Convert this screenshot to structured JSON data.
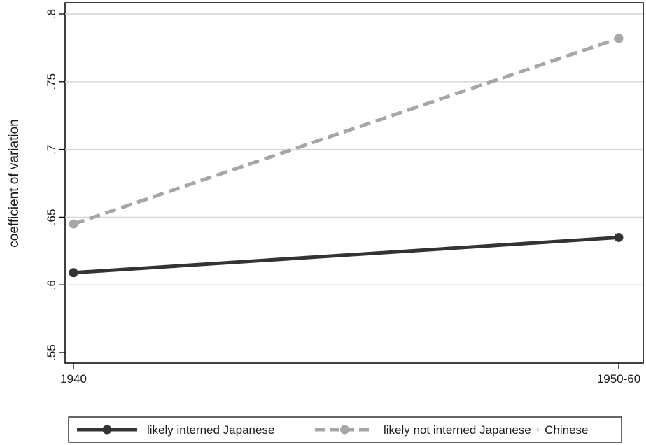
{
  "chart_data": {
    "type": "line",
    "title": "",
    "xlabel": "",
    "ylabel": "coefficient of variation",
    "categories": [
      "1940",
      "1950-60"
    ],
    "ylim": [
      0.55,
      0.8
    ],
    "yticks": [
      0.55,
      0.6,
      0.65,
      0.7,
      0.75,
      0.8
    ],
    "ytick_labels": [
      ".55",
      ".6",
      ".65",
      ".7",
      ".75",
      ".8"
    ],
    "grid": true,
    "legend_position": "bottom",
    "series": [
      {
        "name": "likely interned Japanese",
        "values": [
          0.609,
          0.635
        ],
        "color": "#333333",
        "style": "solid"
      },
      {
        "name": "likely not interned Japanese + Chinese",
        "values": [
          0.645,
          0.782
        ],
        "color": "#a6a6a6",
        "style": "dashed"
      }
    ]
  }
}
